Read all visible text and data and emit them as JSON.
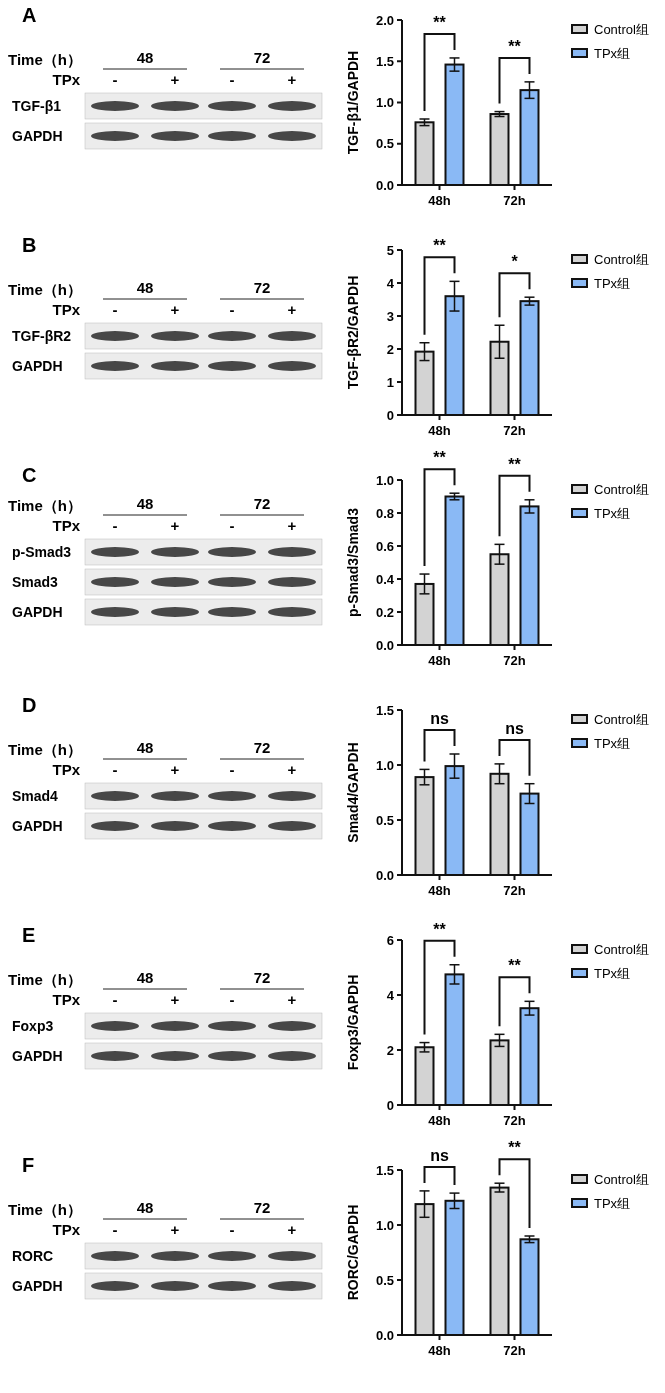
{
  "chart_data": [
    {
      "type": "other",
      "title": "A",
      "annotations": [
        "Time（h）",
        "TPx",
        "48",
        "72",
        "-",
        "+",
        "-",
        "+",
        "TGF-β1",
        "GAPDH"
      ]
    },
    {
      "type": "bar",
      "categories": [
        "48h",
        "72h"
      ],
      "ylabel": "TGF-β1/GAPDH",
      "ylim": [
        0,
        2
      ],
      "yticks": [
        {
          "value": 0,
          "label": "0.0"
        },
        0.5,
        {
          "value": 1,
          "label": "1.0"
        },
        1.5,
        {
          "value": 2,
          "label": "2.0"
        }
      ],
      "legend": "right",
      "annotations": [
        "**",
        "**"
      ],
      "series": [
        {
          "name": "Control组",
          "color": "#d3d3d3",
          "values": [
            0.76,
            0.86
          ],
          "errors": [
            0.04,
            0.03
          ]
        },
        {
          "name": "TPx组",
          "color": "#8ab9f5",
          "values": [
            1.46,
            1.15
          ],
          "errors": [
            0.08,
            0.1
          ]
        }
      ]
    },
    {
      "type": "other",
      "title": "B",
      "annotations": [
        "Time（h）",
        "TPx",
        "48",
        "72",
        "-",
        "+",
        "-",
        "+",
        "TGF-βR2",
        "GAPDH"
      ]
    },
    {
      "type": "bar",
      "categories": [
        "48h",
        "72h"
      ],
      "ylabel": "TGF-βR2/GAPDH",
      "ylim": [
        0,
        5
      ],
      "yticks": [
        0,
        1,
        2,
        3,
        4,
        5
      ],
      "legend": "right",
      "annotations": [
        "**",
        "*"
      ],
      "series": [
        {
          "name": "Control组",
          "color": "#d3d3d3",
          "values": [
            1.92,
            2.22
          ],
          "errors": [
            0.27,
            0.5
          ]
        },
        {
          "name": "TPx组",
          "color": "#8ab9f5",
          "values": [
            3.6,
            3.45
          ],
          "errors": [
            0.45,
            0.12
          ]
        }
      ]
    },
    {
      "type": "other",
      "title": "C",
      "annotations": [
        "Time（h）",
        "TPx",
        "48",
        "72",
        "-",
        "+",
        "-",
        "+",
        "p-Smad3",
        "Smad3",
        "GAPDH"
      ]
    },
    {
      "type": "bar",
      "categories": [
        "48h",
        "72h"
      ],
      "ylabel": "p-Smad3/Smad3",
      "ylim": [
        0,
        1
      ],
      "yticks": [
        {
          "value": 0,
          "label": "0.0"
        },
        0.2,
        0.4,
        0.6,
        0.8,
        {
          "value": 1,
          "label": "1.0"
        }
      ],
      "legend": "right",
      "annotations": [
        "**",
        "**"
      ],
      "series": [
        {
          "name": "Control组",
          "color": "#d3d3d3",
          "values": [
            0.37,
            0.55
          ],
          "errors": [
            0.06,
            0.06
          ]
        },
        {
          "name": "TPx组",
          "color": "#8ab9f5",
          "values": [
            0.9,
            0.84
          ],
          "errors": [
            0.02,
            0.04
          ]
        }
      ]
    },
    {
      "type": "other",
      "title": "D",
      "annotations": [
        "Time（h）",
        "TPx",
        "48",
        "72",
        "-",
        "+",
        "-",
        "+",
        "Smad4",
        "GAPDH"
      ]
    },
    {
      "type": "bar",
      "categories": [
        "48h",
        "72h"
      ],
      "ylabel": "Smad4/GAPDH",
      "ylim": [
        0,
        1.5
      ],
      "yticks": [
        {
          "value": 0,
          "label": "0.0"
        },
        0.5,
        {
          "value": 1,
          "label": "1.0"
        },
        1.5
      ],
      "legend": "right",
      "annotations": [
        "ns",
        "ns"
      ],
      "series": [
        {
          "name": "Control组",
          "color": "#d3d3d3",
          "values": [
            0.89,
            0.92
          ],
          "errors": [
            0.07,
            0.09
          ]
        },
        {
          "name": "TPx组",
          "color": "#8ab9f5",
          "values": [
            0.99,
            0.74
          ],
          "errors": [
            0.11,
            0.09
          ]
        }
      ]
    },
    {
      "type": "other",
      "title": "E",
      "annotations": [
        "Time（h）",
        "TPx",
        "48",
        "72",
        "-",
        "+",
        "-",
        "+",
        "Foxp3",
        "GAPDH"
      ]
    },
    {
      "type": "bar",
      "categories": [
        "48h",
        "72h"
      ],
      "ylabel": "Foxp3/GAPDH",
      "ylim": [
        0,
        6
      ],
      "yticks": [
        0,
        2,
        4,
        6
      ],
      "legend": "right",
      "annotations": [
        "**",
        "**"
      ],
      "series": [
        {
          "name": "Control组",
          "color": "#d3d3d3",
          "values": [
            2.1,
            2.35
          ],
          "errors": [
            0.17,
            0.22
          ]
        },
        {
          "name": "TPx组",
          "color": "#8ab9f5",
          "values": [
            4.75,
            3.52
          ],
          "errors": [
            0.35,
            0.25
          ]
        }
      ]
    },
    {
      "type": "other",
      "title": "F",
      "annotations": [
        "Time（h）",
        "TPx",
        "48",
        "72",
        "-",
        "+",
        "-",
        "+",
        "RORC",
        "GAPDH"
      ]
    },
    {
      "type": "bar",
      "categories": [
        "48h",
        "72h"
      ],
      "ylabel": "RORC/GAPDH",
      "ylim": [
        0,
        1.5
      ],
      "yticks": [
        {
          "value": 0,
          "label": "0.0"
        },
        0.5,
        {
          "value": 1,
          "label": "1.0"
        },
        1.5
      ],
      "legend": "right",
      "annotations": [
        "ns",
        "**"
      ],
      "series": [
        {
          "name": "Control组",
          "color": "#d3d3d3",
          "values": [
            1.19,
            1.34
          ],
          "errors": [
            0.12,
            0.04
          ]
        },
        {
          "name": "TPx组",
          "color": "#8ab9f5",
          "values": [
            1.22,
            0.87
          ],
          "errors": [
            0.07,
            0.03
          ]
        }
      ]
    }
  ]
}
